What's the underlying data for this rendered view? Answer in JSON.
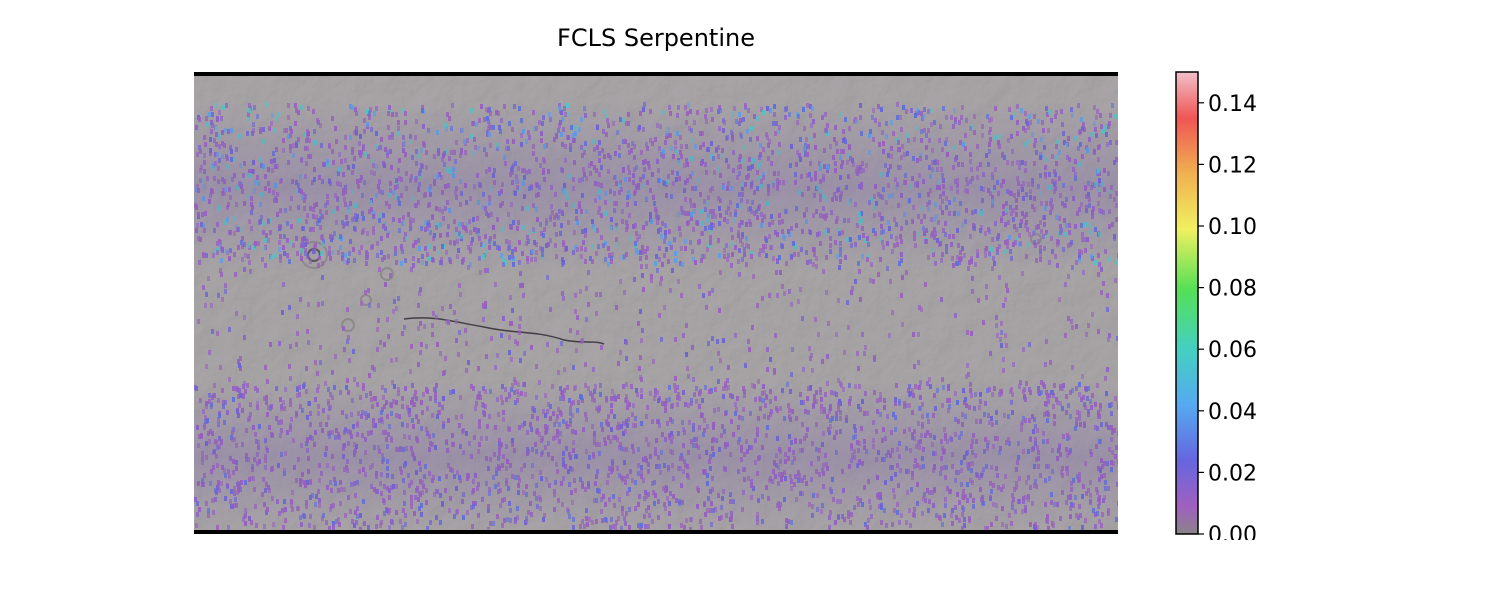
{
  "title": "FCLS Serpentine",
  "map": {
    "description_basemap": "shaded relief, grayscale",
    "overlay_colormap": [
      "#8a7a8a",
      "#a050c0",
      "#5050e0",
      "#40a0f0",
      "#40d0c0",
      "#50e050",
      "#f0f050",
      "#f0a040",
      "#f04040",
      "#f0b0b0"
    ]
  },
  "colorbar": {
    "min": 0.0,
    "max": 0.15,
    "ticks": [
      "0.00",
      "0.02",
      "0.04",
      "0.06",
      "0.08",
      "0.10",
      "0.12",
      "0.14"
    ],
    "tick_values": [
      0.0,
      0.02,
      0.04,
      0.06,
      0.08,
      0.1,
      0.12,
      0.14
    ]
  },
  "colors": {
    "basemap": "#6f6a6d",
    "band_dense": "#8a5fb0",
    "band_blue": "#5a6ad8",
    "frame": "#000000"
  }
}
